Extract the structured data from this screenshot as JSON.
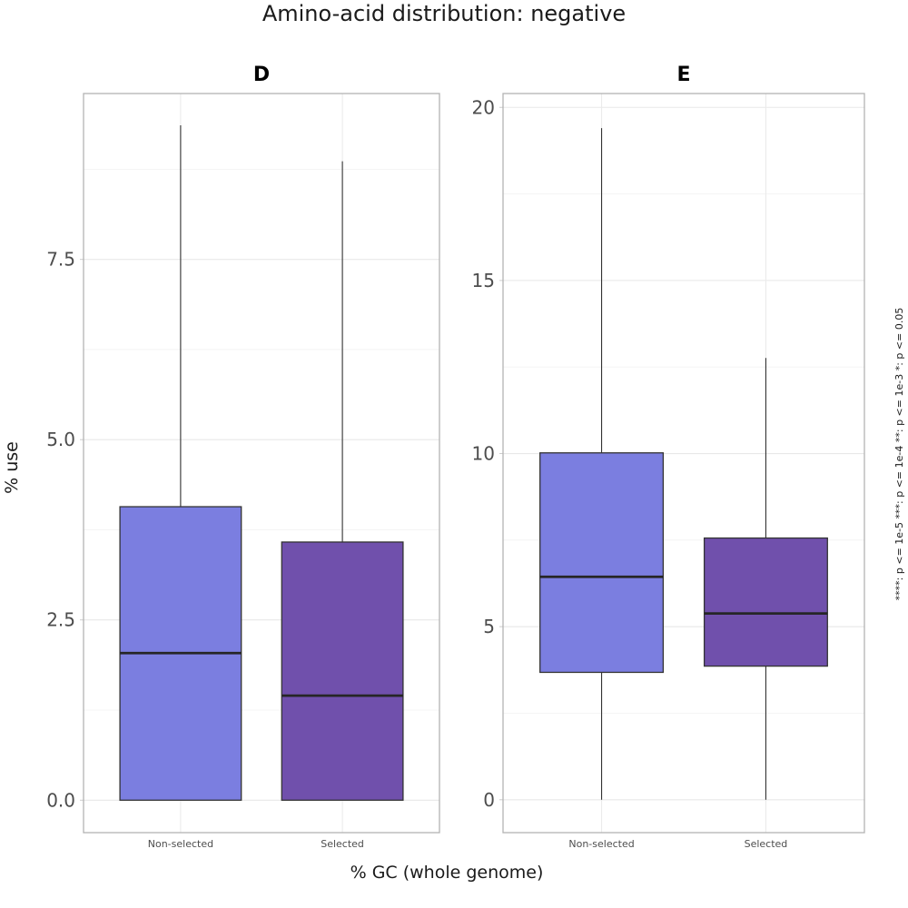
{
  "chart_data": {
    "type": "box",
    "title": "Amino-acid distribution: negative",
    "xlabel": "% GC (whole genome)",
    "ylabel": "% use",
    "side_caption": "****: p <= 1e-5     ***: p <= 1e-4     **: p <= 1e-3     *: p <= 0.05",
    "categories": [
      "Non-selected",
      "Selected"
    ],
    "colors": {
      "Non-selected": "#7b7ee0",
      "Selected": "#7050ac"
    },
    "grid": true,
    "panels": [
      {
        "title": "D",
        "ylim": [
          -0.45,
          9.8
        ],
        "yticks": [
          "0.0",
          "2.5",
          "5.0",
          "7.5"
        ],
        "boxes": [
          {
            "category": "Non-selected",
            "min": 0.0,
            "q1": 0.0,
            "median": 2.04,
            "q3": 4.07,
            "max": 9.36
          },
          {
            "category": "Selected",
            "min": 0.0,
            "q1": 0.0,
            "median": 1.45,
            "q3": 3.58,
            "max": 8.86
          }
        ]
      },
      {
        "title": "E",
        "ylim": [
          -0.95,
          20.4
        ],
        "yticks": [
          "0",
          "5",
          "10",
          "15",
          "20"
        ],
        "boxes": [
          {
            "category": "Non-selected",
            "min": 0.0,
            "q1": 3.68,
            "median": 6.44,
            "q3": 10.02,
            "max": 19.4
          },
          {
            "category": "Selected",
            "min": 0.0,
            "q1": 3.86,
            "median": 5.38,
            "q3": 7.56,
            "max": 12.76
          }
        ]
      }
    ]
  }
}
